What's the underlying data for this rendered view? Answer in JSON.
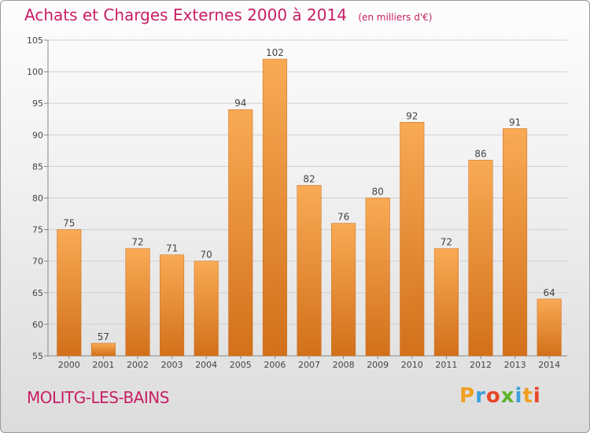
{
  "title": "Achats et Charges Externes 2000 à 2014",
  "unit_label": "(en milliers d'€)",
  "city": "MOLITG-LES-BAINS",
  "logo": "Proxiti",
  "colors": {
    "bar_light": "#f7a24e",
    "bar_dark": "#d2701a",
    "title": "#c81e64",
    "grid": "#d0d0d0"
  },
  "chart_data": {
    "type": "bar",
    "title": "Achats et Charges Externes 2000 à 2014",
    "xlabel": "",
    "ylabel": "",
    "ylim": [
      55,
      105
    ],
    "yticks": [
      55,
      60,
      65,
      70,
      75,
      80,
      85,
      90,
      95,
      100,
      105
    ],
    "categories": [
      "2000",
      "2001",
      "2002",
      "2003",
      "2004",
      "2005",
      "2006",
      "2007",
      "2008",
      "2009",
      "2010",
      "2011",
      "2012",
      "2013",
      "2014"
    ],
    "values": [
      75,
      57,
      72,
      71,
      70,
      94,
      102,
      82,
      76,
      80,
      92,
      72,
      86,
      91,
      64
    ],
    "grid": true
  }
}
